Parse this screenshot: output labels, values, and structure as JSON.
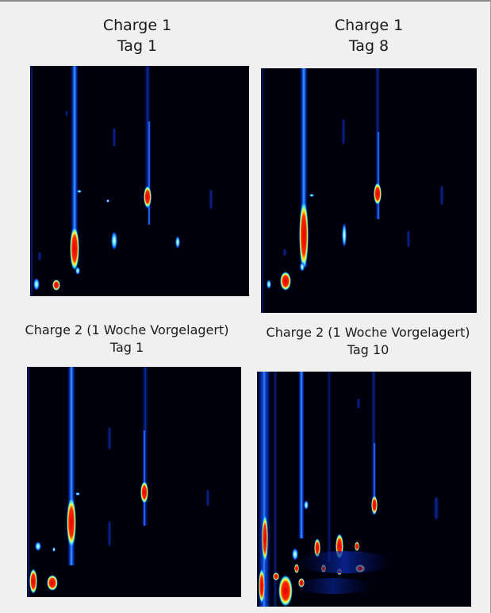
{
  "panels": [
    {
      "id": "c1t1",
      "line1": "Charge 1",
      "line2": "Tag 1"
    },
    {
      "id": "c1t8",
      "line1": "Charge 1",
      "line2": "Tag 8"
    },
    {
      "id": "c2t1",
      "line1": "Charge 2 (1 Woche Vorgelagert)",
      "line2": "Tag 1"
    },
    {
      "id": "c2t10",
      "line1": "Charge 2 (1 Woche Vorgelagert)",
      "line2": "Tag 10"
    }
  ]
}
